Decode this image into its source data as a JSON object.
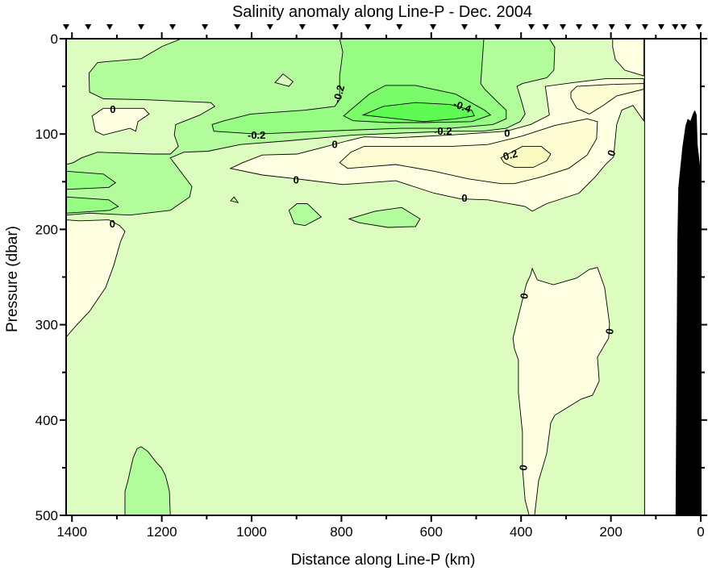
{
  "chart_data": {
    "type": "contour",
    "title": "Salinity anomaly along Line-P - Dec. 2004",
    "xlabel": "Distance along Line-P (km)",
    "ylabel": "Pressure (dbar)",
    "xlim": [
      1413,
      0
    ],
    "ylim": [
      0,
      500
    ],
    "x_ticks": [
      1400,
      1200,
      1000,
      800,
      600,
      400,
      200,
      0
    ],
    "x_minor_step": 100,
    "y_ticks": [
      0,
      100,
      200,
      300,
      400,
      500
    ],
    "y_minor_step": 50,
    "grid": false,
    "data_extent_km": 125,
    "stations_km": [
      1413,
      1364,
      1316,
      1246,
      1176,
      1104,
      1032,
      959,
      887,
      813,
      741,
      671,
      596,
      526,
      452,
      377,
      345,
      307,
      271,
      235,
      198,
      162,
      124,
      88,
      57,
      38,
      4
    ],
    "colors": {
      "background": "#dcfcc0",
      "neg_0_1": "#b2fc9c",
      "neg_0_2": "#96fc84",
      "neg_0_3": "#7afc6a",
      "neg_0_4": "#5efc52",
      "pos_0_0": "#fefee0",
      "pos_0_1": "#fefcd2",
      "pos_0_2": "#fcfcc2",
      "bathymetry": "#000000"
    },
    "regions": [
      {
        "level": "neg_0_1",
        "points": [
          [
            1416,
            0
          ],
          [
            337,
            0
          ],
          [
            325,
            9
          ],
          [
            327,
            33
          ],
          [
            343,
            41
          ],
          [
            397,
            47
          ],
          [
            409,
            50
          ],
          [
            400,
            64
          ],
          [
            391,
            79
          ],
          [
            402,
            87
          ],
          [
            433,
            94
          ],
          [
            486,
            97
          ],
          [
            558,
            97
          ],
          [
            666,
            99
          ],
          [
            774,
            101
          ],
          [
            845,
            104
          ],
          [
            917,
            107
          ],
          [
            1025,
            111
          ],
          [
            1097,
            118
          ],
          [
            1151,
            119
          ],
          [
            1181,
            125
          ],
          [
            1133,
            155
          ],
          [
            1138,
            166
          ],
          [
            1181,
            180
          ],
          [
            1271,
            185
          ],
          [
            1361,
            183
          ],
          [
            1416,
            185
          ]
        ]
      },
      {
        "level": "background",
        "points": [
          [
            1416,
            0
          ],
          [
            1156,
            0
          ],
          [
            1199,
            8
          ],
          [
            1246,
            21
          ],
          [
            1343,
            25
          ],
          [
            1362,
            36
          ],
          [
            1361,
            56
          ],
          [
            1330,
            63
          ],
          [
            1240,
            64
          ],
          [
            1091,
            67
          ],
          [
            1082,
            71
          ],
          [
            1115,
            80
          ],
          [
            1169,
            90
          ],
          [
            1172,
            101
          ],
          [
            1163,
            113
          ],
          [
            1181,
            121
          ],
          [
            1222,
            121
          ],
          [
            1343,
            119
          ],
          [
            1379,
            125
          ],
          [
            1397,
            130
          ],
          [
            1416,
            132
          ]
        ]
      },
      {
        "level": "background",
        "points": [
          [
            948,
            46
          ],
          [
            930,
            37
          ],
          [
            908,
            45
          ],
          [
            917,
            50
          ]
        ]
      },
      {
        "level": "neg_0_2",
        "points": [
          [
            804,
            0
          ],
          [
            483,
            0
          ],
          [
            490,
            47
          ],
          [
            481,
            53
          ],
          [
            451,
            67
          ],
          [
            433,
            75
          ],
          [
            433,
            84
          ],
          [
            463,
            90
          ],
          [
            558,
            94
          ],
          [
            666,
            94
          ],
          [
            786,
            96
          ],
          [
            845,
            97
          ],
          [
            989,
            100
          ],
          [
            1084,
            97
          ],
          [
            1088,
            90
          ],
          [
            1061,
            86
          ],
          [
            1002,
            79
          ],
          [
            881,
            75
          ],
          [
            815,
            71
          ],
          [
            804,
            64
          ],
          [
            804,
            39
          ],
          [
            797,
            14
          ]
        ]
      },
      {
        "level": "neg_0_3",
        "points": [
          [
            795,
            81
          ],
          [
            738,
            58
          ],
          [
            702,
            49
          ],
          [
            635,
            49
          ],
          [
            546,
            58
          ],
          [
            481,
            75
          ],
          [
            468,
            80
          ],
          [
            510,
            87
          ],
          [
            617,
            88
          ],
          [
            696,
            88
          ],
          [
            774,
            86
          ]
        ]
      },
      {
        "level": "neg_0_4",
        "points": [
          [
            752,
            80
          ],
          [
            707,
            71
          ],
          [
            635,
            67
          ],
          [
            558,
            69
          ],
          [
            510,
            75
          ],
          [
            504,
            81
          ],
          [
            546,
            84
          ],
          [
            617,
            87
          ],
          [
            696,
            83
          ]
        ]
      },
      {
        "level": "neg_0_2",
        "points": [
          [
            1416,
            139
          ],
          [
            1330,
            142
          ],
          [
            1303,
            151
          ],
          [
            1318,
            156
          ],
          [
            1416,
            158
          ]
        ]
      },
      {
        "level": "neg_0_2",
        "points": [
          [
            1416,
            166
          ],
          [
            1318,
            169
          ],
          [
            1297,
            176
          ],
          [
            1316,
            180
          ],
          [
            1416,
            183
          ]
        ]
      },
      {
        "level": "neg_0_1",
        "points": [
          [
            917,
            180
          ],
          [
            899,
            173
          ],
          [
            876,
            173
          ],
          [
            845,
            187
          ],
          [
            881,
            196
          ],
          [
            905,
            194
          ]
        ]
      },
      {
        "level": "neg_0_1",
        "points": [
          [
            783,
            189
          ],
          [
            725,
            181
          ],
          [
            666,
            177
          ],
          [
            625,
            189
          ],
          [
            635,
            197
          ],
          [
            696,
            198
          ],
          [
            761,
            193
          ]
        ]
      },
      {
        "level": "neg_0_1",
        "points": [
          [
            1047,
            170
          ],
          [
            1039,
            166
          ],
          [
            1030,
            172
          ]
        ]
      },
      {
        "level": "neg_0_1",
        "points": [
          [
            1282,
            500
          ],
          [
            1282,
            475
          ],
          [
            1276,
            465
          ],
          [
            1264,
            440
          ],
          [
            1255,
            430
          ],
          [
            1246,
            428
          ],
          [
            1231,
            433
          ],
          [
            1213,
            444
          ],
          [
            1201,
            450
          ],
          [
            1192,
            458
          ],
          [
            1188,
            465
          ],
          [
            1183,
            475
          ],
          [
            1181,
            500
          ]
        ]
      },
      {
        "level": "pos_0_0",
        "points": [
          [
            1355,
            81
          ],
          [
            1330,
            73
          ],
          [
            1240,
            73
          ],
          [
            1228,
            79
          ],
          [
            1253,
            87
          ],
          [
            1258,
            97
          ],
          [
            1271,
            94
          ],
          [
            1330,
            101
          ],
          [
            1348,
            97
          ]
        ]
      },
      {
        "level": "pos_0_0",
        "points": [
          [
            1416,
            190
          ],
          [
            1384,
            191
          ],
          [
            1318,
            190
          ],
          [
            1294,
            196
          ],
          [
            1282,
            202
          ],
          [
            1292,
            213
          ],
          [
            1307,
            238
          ],
          [
            1325,
            261
          ],
          [
            1361,
            286
          ],
          [
            1389,
            300
          ],
          [
            1416,
            313
          ]
        ]
      },
      {
        "level": "pos_0_0",
        "points": [
          [
            1047,
            136
          ],
          [
            1020,
            130
          ],
          [
            976,
            122
          ],
          [
            899,
            121
          ],
          [
            833,
            113
          ],
          [
            786,
            107
          ],
          [
            750,
            103
          ],
          [
            679,
            104
          ],
          [
            558,
            101
          ],
          [
            433,
            97
          ],
          [
            379,
            90
          ],
          [
            337,
            80
          ],
          [
            346,
            50
          ],
          [
            284,
            46
          ],
          [
            212,
            42
          ],
          [
            127,
            42
          ],
          [
            127,
            86
          ],
          [
            151,
            70
          ],
          [
            176,
            75
          ],
          [
            187,
            90
          ],
          [
            194,
            124
          ],
          [
            212,
            132
          ],
          [
            235,
            145
          ],
          [
            271,
            162
          ],
          [
            343,
            173
          ],
          [
            375,
            181
          ],
          [
            391,
            176
          ],
          [
            474,
            169
          ],
          [
            535,
            168
          ],
          [
            594,
            162
          ],
          [
            679,
            149
          ],
          [
            797,
            153
          ],
          [
            899,
            147
          ],
          [
            976,
            143
          ]
        ]
      },
      {
        "level": "pos_0_0",
        "points": [
          [
            196,
            0
          ],
          [
            127,
            0
          ],
          [
            127,
            39
          ],
          [
            169,
            33
          ],
          [
            190,
            22
          ],
          [
            196,
            9
          ]
        ]
      },
      {
        "level": "pos_0_0",
        "points": [
          [
            375,
            241
          ],
          [
            364,
            253
          ],
          [
            328,
            258
          ],
          [
            276,
            251
          ],
          [
            248,
            242
          ],
          [
            230,
            240
          ],
          [
            226,
            245
          ],
          [
            214,
            261
          ],
          [
            203,
            299
          ],
          [
            205,
            314
          ],
          [
            230,
            334
          ],
          [
            226,
            359
          ],
          [
            241,
            374
          ],
          [
            266,
            378
          ],
          [
            325,
            395
          ],
          [
            334,
            403
          ],
          [
            343,
            435
          ],
          [
            361,
            464
          ],
          [
            370,
            500
          ],
          [
            382,
            500
          ],
          [
            391,
            484
          ],
          [
            397,
            450
          ],
          [
            397,
            413
          ],
          [
            406,
            371
          ],
          [
            406,
            337
          ],
          [
            415,
            325
          ],
          [
            418,
            314
          ],
          [
            406,
            291
          ],
          [
            388,
            257
          ],
          [
            379,
            248
          ]
        ]
      },
      {
        "level": "pos_0_1",
        "points": [
          [
            804,
            130
          ],
          [
            779,
            119
          ],
          [
            750,
            113
          ],
          [
            679,
            113
          ],
          [
            558,
            113
          ],
          [
            474,
            111
          ],
          [
            397,
            102
          ],
          [
            325,
            91
          ],
          [
            253,
            84
          ],
          [
            230,
            87
          ],
          [
            232,
            105
          ],
          [
            253,
            122
          ],
          [
            294,
            136
          ],
          [
            355,
            145
          ],
          [
            415,
            152
          ],
          [
            445,
            152
          ],
          [
            517,
            147
          ],
          [
            594,
            139
          ],
          [
            679,
            132
          ],
          [
            786,
            136
          ]
        ]
      },
      {
        "level": "pos_0_1",
        "points": [
          [
            289,
            56
          ],
          [
            276,
            50
          ],
          [
            199,
            48
          ],
          [
            127,
            47
          ],
          [
            127,
            53
          ],
          [
            187,
            60
          ],
          [
            217,
            70
          ],
          [
            248,
            79
          ],
          [
            276,
            73
          ],
          [
            289,
            62
          ]
        ]
      },
      {
        "level": "pos_0_2",
        "points": [
          [
            445,
            125
          ],
          [
            397,
            113
          ],
          [
            355,
            113
          ],
          [
            334,
            121
          ],
          [
            343,
            128
          ],
          [
            373,
            135
          ],
          [
            415,
            135
          ],
          [
            438,
            130
          ]
        ]
      }
    ],
    "bathymetry": [
      [
        56,
        500
      ],
      [
        52,
        213
      ],
      [
        50,
        156
      ],
      [
        41,
        114
      ],
      [
        34,
        91
      ],
      [
        29,
        84
      ],
      [
        23,
        86
      ],
      [
        16,
        77
      ],
      [
        13,
        75
      ],
      [
        9,
        80
      ],
      [
        7,
        111
      ],
      [
        0,
        140
      ],
      [
        0,
        500
      ]
    ],
    "contour_labels": [
      {
        "text": "-0.2",
        "km": 806,
        "dbar": 58
      },
      {
        "text": "-0.4",
        "km": 531,
        "dbar": 71
      },
      {
        "text": "-0.2",
        "km": 989,
        "dbar": 101
      },
      {
        "text": "-0.2",
        "km": 574,
        "dbar": 97
      },
      {
        "text": "0",
        "km": 1309,
        "dbar": 74
      },
      {
        "text": "0",
        "km": 815,
        "dbar": 111
      },
      {
        "text": "0",
        "km": 431,
        "dbar": 99
      },
      {
        "text": "0",
        "km": 901,
        "dbar": 148
      },
      {
        "text": "0",
        "km": 526,
        "dbar": 167
      },
      {
        "text": "0.2",
        "km": 424,
        "dbar": 122
      },
      {
        "text": "0",
        "km": 199,
        "dbar": 120
      },
      {
        "text": "0",
        "km": 1310,
        "dbar": 194
      },
      {
        "text": "0",
        "km": 393,
        "dbar": 270
      },
      {
        "text": "0",
        "km": 203,
        "dbar": 307
      },
      {
        "text": "0",
        "km": 395,
        "dbar": 450
      }
    ]
  }
}
